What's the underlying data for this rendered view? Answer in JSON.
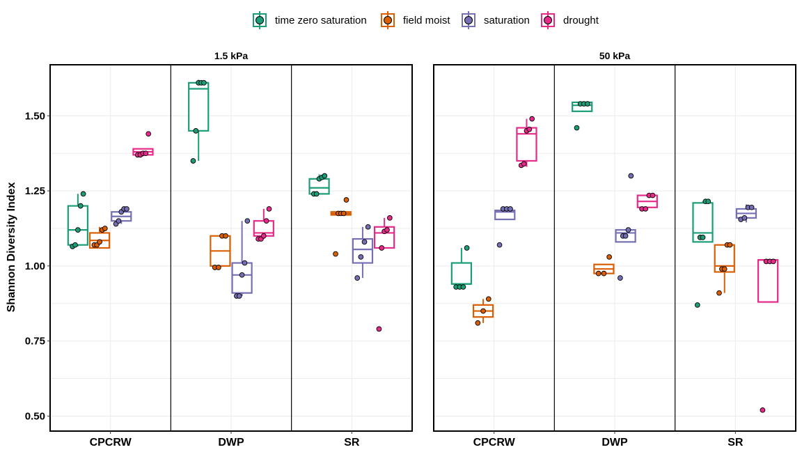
{
  "chart_data": {
    "type": "box",
    "ylabel": "Shannon Diversity Index",
    "ylim": [
      0.45,
      1.67
    ],
    "yticks": [
      0.5,
      0.75,
      1.0,
      1.25,
      1.5
    ],
    "ytick_labels": [
      "0.50",
      "0.75",
      "1.00",
      "1.25",
      "1.50"
    ],
    "grid": true,
    "legend_position": "top",
    "categories": [
      "CPCRW",
      "DWP",
      "SR"
    ],
    "series": [
      {
        "name": "time zero saturation",
        "color": "#1b9e77"
      },
      {
        "name": "field moist",
        "color": "#d95f02"
      },
      {
        "name": "saturation",
        "color": "#7570b3"
      },
      {
        "name": "drought",
        "color": "#e7298a"
      }
    ],
    "panels": [
      {
        "title": "1.5 kPa",
        "groups": [
          [
            {
              "q1": 1.07,
              "median": 1.12,
              "q3": 1.2,
              "wlo": 1.065,
              "whi": 1.24,
              "points": [
                1.065,
                1.07,
                1.12,
                1.2,
                1.24
              ]
            },
            {
              "q1": 1.06,
              "median": 1.085,
              "q3": 1.11,
              "wlo": 1.06,
              "whi": 1.13,
              "points": [
                1.07,
                1.07,
                1.08,
                1.12,
                1.125
              ]
            },
            {
              "q1": 1.15,
              "median": 1.165,
              "q3": 1.18,
              "wlo": 1.14,
              "whi": 1.19,
              "points": [
                1.14,
                1.15,
                1.18,
                1.19,
                1.19
              ]
            },
            {
              "q1": 1.37,
              "median": 1.38,
              "q3": 1.39,
              "wlo": 1.365,
              "whi": 1.39,
              "points": [
                1.37,
                1.37,
                1.375,
                1.375,
                1.44
              ]
            }
          ],
          [
            {
              "q1": 1.45,
              "median": 1.59,
              "q3": 1.61,
              "wlo": 1.35,
              "whi": 1.62,
              "points": [
                1.35,
                1.45,
                1.61,
                1.61,
                1.61
              ]
            },
            {
              "q1": 1.0,
              "median": 1.05,
              "q3": 1.1,
              "wlo": 0.995,
              "whi": 1.1,
              "points": [
                0.995,
                0.995,
                1.1,
                1.1
              ]
            },
            {
              "q1": 0.91,
              "median": 0.97,
              "q3": 1.01,
              "wlo": 0.9,
              "whi": 1.15,
              "points": [
                0.9,
                0.9,
                0.97,
                1.01,
                1.15
              ]
            },
            {
              "q1": 1.1,
              "median": 1.11,
              "q3": 1.15,
              "wlo": 1.09,
              "whi": 1.19,
              "points": [
                1.09,
                1.09,
                1.1,
                1.15,
                1.19
              ]
            }
          ],
          [
            {
              "q1": 1.24,
              "median": 1.26,
              "q3": 1.29,
              "wlo": 1.24,
              "whi": 1.305,
              "points": [
                1.24,
                1.24,
                1.29,
                1.295,
                1.3
              ]
            },
            {
              "q1": 1.17,
              "median": 1.175,
              "q3": 1.18,
              "wlo": 1.17,
              "whi": 1.18,
              "points": [
                1.04,
                1.175,
                1.175,
                1.175,
                1.22
              ]
            },
            {
              "q1": 1.01,
              "median": 1.055,
              "q3": 1.09,
              "wlo": 0.96,
              "whi": 1.13,
              "points": [
                0.96,
                1.03,
                1.08,
                1.13
              ]
            },
            {
              "q1": 1.06,
              "median": 1.11,
              "q3": 1.13,
              "wlo": 1.06,
              "whi": 1.16,
              "points": [
                0.79,
                1.06,
                1.115,
                1.12,
                1.16
              ]
            }
          ]
        ]
      },
      {
        "title": "50 kPa",
        "groups": [
          [
            {
              "q1": 0.94,
              "median": 0.94,
              "q3": 1.01,
              "wlo": 0.93,
              "whi": 1.06,
              "points": [
                0.93,
                0.93,
                0.93,
                1.06
              ]
            },
            {
              "q1": 0.83,
              "median": 0.85,
              "q3": 0.87,
              "wlo": 0.81,
              "whi": 0.89,
              "points": [
                0.81,
                0.85,
                0.89
              ]
            },
            {
              "q1": 1.155,
              "median": 1.18,
              "q3": 1.185,
              "wlo": 1.155,
              "whi": 1.19,
              "points": [
                1.07,
                1.19,
                1.19,
                1.19
              ]
            },
            {
              "q1": 1.35,
              "median": 1.44,
              "q3": 1.46,
              "wlo": 1.33,
              "whi": 1.49,
              "points": [
                1.335,
                1.34,
                1.45,
                1.455,
                1.49
              ]
            }
          ],
          [
            {
              "q1": 1.515,
              "median": 1.535,
              "q3": 1.545,
              "wlo": 1.515,
              "whi": 1.545,
              "points": [
                1.46,
                1.54,
                1.54,
                1.54
              ]
            },
            {
              "q1": 0.975,
              "median": 0.99,
              "q3": 1.005,
              "wlo": 0.975,
              "whi": 1.005,
              "points": [
                0.975,
                0.975,
                1.03
              ]
            },
            {
              "q1": 1.08,
              "median": 1.11,
              "q3": 1.12,
              "wlo": 1.08,
              "whi": 1.12,
              "points": [
                0.96,
                1.1,
                1.1,
                1.12,
                1.3
              ]
            },
            {
              "q1": 1.195,
              "median": 1.215,
              "q3": 1.235,
              "wlo": 1.19,
              "whi": 1.235,
              "points": [
                1.19,
                1.19,
                1.235,
                1.235
              ]
            }
          ],
          [
            {
              "q1": 1.08,
              "median": 1.11,
              "q3": 1.21,
              "wlo": 1.08,
              "whi": 1.215,
              "points": [
                0.87,
                1.095,
                1.095,
                1.215,
                1.215
              ]
            },
            {
              "q1": 0.98,
              "median": 1.0,
              "q3": 1.07,
              "wlo": 0.91,
              "whi": 1.07,
              "points": [
                0.91,
                0.99,
                0.99,
                1.07,
                1.07
              ]
            },
            {
              "q1": 1.16,
              "median": 1.175,
              "q3": 1.19,
              "wlo": 1.145,
              "whi": 1.205,
              "points": [
                1.155,
                1.16,
                1.195,
                1.195
              ]
            },
            {
              "q1": 0.88,
              "median": 1.02,
              "q3": 1.02,
              "wlo": 1.015,
              "whi": 1.02,
              "points": [
                0.52,
                1.015,
                1.015,
                1.015
              ]
            }
          ]
        ]
      }
    ]
  }
}
